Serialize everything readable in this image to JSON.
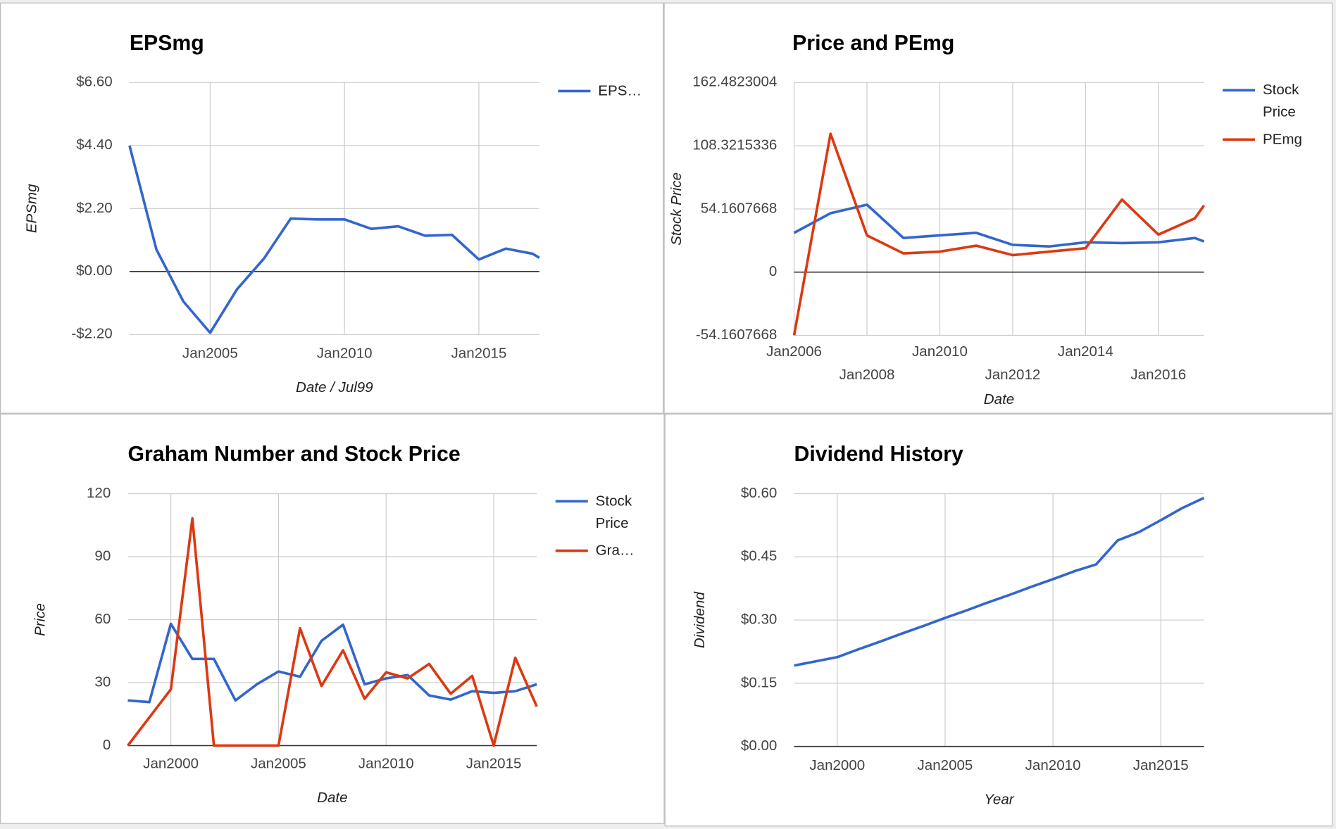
{
  "chart_data": [
    {
      "type": "line",
      "title": "EPSmg",
      "y_label": "EPSmg",
      "x_label": "Date / Jul99",
      "x": [
        "2002-01",
        "2003-01",
        "2004-01",
        "2005-01",
        "2006-01",
        "2007-01",
        "2008-01",
        "2009-01",
        "2010-01",
        "2011-01",
        "2012-01",
        "2013-01",
        "2014-01",
        "2015-01",
        "2016-01",
        "2017-01",
        "2017-04"
      ],
      "series": [
        {
          "name": "EPS…",
          "color": "#3366cc",
          "values": [
            4.4,
            0.77,
            -1.04,
            -2.14,
            -0.62,
            0.45,
            1.85,
            1.82,
            1.82,
            1.49,
            1.58,
            1.25,
            1.28,
            0.42,
            0.8,
            0.62,
            0.48
          ]
        }
      ],
      "xlim": [
        "2002-01",
        "2017-04"
      ],
      "xticks": [
        {
          "value": "2005-01",
          "label": "Jan2005"
        },
        {
          "value": "2010-01",
          "label": "Jan2010"
        },
        {
          "value": "2015-01",
          "label": "Jan2015"
        }
      ],
      "ylim": [
        -2.2,
        6.6
      ],
      "yticks": [
        {
          "value": -2.2,
          "label": "-$2.20"
        },
        {
          "value": 0,
          "label": "$0.00"
        },
        {
          "value": 2.2,
          "label": "$2.20"
        },
        {
          "value": 4.4,
          "label": "$4.40"
        },
        {
          "value": 6.6,
          "label": "$6.60"
        }
      ],
      "grid": true,
      "legend": "right"
    },
    {
      "type": "line",
      "title": "Price and PEmg",
      "y_label": "Stock Price",
      "x_label": "Date",
      "x": [
        "2006-01",
        "2007-01",
        "2008-01",
        "2009-01",
        "2010-01",
        "2011-01",
        "2012-01",
        "2013-01",
        "2014-01",
        "2015-01",
        "2016-01",
        "2017-01",
        "2017-04"
      ],
      "series": [
        {
          "name": "Stock Price",
          "color": "#3366cc",
          "values": [
            33.7,
            50.5,
            57.8,
            29.3,
            31.5,
            33.7,
            23.4,
            22,
            25.6,
            24.9,
            25.6,
            29.3,
            26.3
          ]
        },
        {
          "name": "PEmg",
          "color": "#dc3912",
          "values": [
            -54.1,
            118.6,
            31.5,
            16.1,
            17.6,
            22.7,
            14.6,
            17.6,
            20.5,
            62.2,
            32.2,
            46.1,
            57.1
          ]
        }
      ],
      "xlim": [
        "2006-01",
        "2017-04"
      ],
      "xticks": [
        {
          "value": "2006-01",
          "label": "Jan2006"
        },
        {
          "value": "2008-01",
          "label": "Jan2008"
        },
        {
          "value": "2010-01",
          "label": "Jan2010"
        },
        {
          "value": "2012-01",
          "label": "Jan2012"
        },
        {
          "value": "2014-01",
          "label": "Jan2014"
        },
        {
          "value": "2016-01",
          "label": "Jan2016"
        }
      ],
      "ylim": [
        -54.1607668,
        162.4823004
      ],
      "yticks": [
        -54.1607668,
        0,
        54.1607668,
        108.3215336,
        162.4823004
      ],
      "grid": true,
      "legend": "right"
    },
    {
      "type": "line",
      "title": "Graham Number and Stock Price",
      "y_label": "Price",
      "x_label": "Date",
      "x": [
        "1998-01",
        "1999-01",
        "2000-01",
        "2001-01",
        "2002-01",
        "2003-01",
        "2004-01",
        "2005-01",
        "2006-01",
        "2007-01",
        "2008-01",
        "2009-01",
        "2010-01",
        "2011-01",
        "2012-01",
        "2013-01",
        "2014-01",
        "2015-01",
        "2016-01",
        "2017-01"
      ],
      "series": [
        {
          "name": "Stock Price",
          "color": "#3366cc",
          "values": [
            21.5,
            20.7,
            58,
            41.3,
            41.3,
            21.5,
            29.2,
            35.3,
            32.8,
            49.9,
            57.6,
            29.2,
            32,
            33.6,
            23.9,
            21.9,
            25.9,
            25.1,
            25.9,
            29.2
          ]
        },
        {
          "name": "Gra…",
          "color": "#dc3912",
          "values": [
            0,
            13.4,
            26.8,
            108.2,
            0,
            0,
            0,
            0,
            55.9,
            28.4,
            45.4,
            22.3,
            34.9,
            32,
            38.9,
            24.7,
            33.2,
            0,
            41.8,
            18.6
          ]
        }
      ],
      "xlim": [
        "1998-01",
        "2017-01"
      ],
      "xticks": [
        {
          "value": "2000-01",
          "label": "Jan2000"
        },
        {
          "value": "2005-01",
          "label": "Jan2005"
        },
        {
          "value": "2010-01",
          "label": "Jan2010"
        },
        {
          "value": "2015-01",
          "label": "Jan2015"
        }
      ],
      "ylim": [
        0,
        120
      ],
      "yticks": [
        0,
        30,
        60,
        90,
        120
      ],
      "grid": true,
      "legend": "right"
    },
    {
      "type": "line",
      "title": "Dividend History",
      "y_label": "Dividend",
      "x_label": "Year",
      "x": [
        "1998-01",
        "1999-01",
        "2000-01",
        "2001-01",
        "2002-01",
        "2003-01",
        "2004-01",
        "2005-01",
        "2006-01",
        "2007-01",
        "2008-01",
        "2009-01",
        "2010-01",
        "2011-01",
        "2012-01",
        "2013-01",
        "2014-01",
        "2015-01",
        "2016-01",
        "2017-01"
      ],
      "series": [
        {
          "color": "#3366cc",
          "values": [
            0.192,
            0.202,
            0.212,
            0.231,
            0.249,
            0.268,
            0.286,
            0.305,
            0.323,
            0.342,
            0.36,
            0.379,
            0.397,
            0.416,
            0.432,
            0.489,
            0.509,
            0.537,
            0.566,
            0.59
          ]
        }
      ],
      "xlim": [
        "1998-01",
        "2017-01"
      ],
      "xticks": [
        {
          "value": "2000-01",
          "label": "Jan2000"
        },
        {
          "value": "2005-01",
          "label": "Jan2005"
        },
        {
          "value": "2010-01",
          "label": "Jan2010"
        },
        {
          "value": "2015-01",
          "label": "Jan2015"
        }
      ],
      "ylim": [
        0,
        0.6
      ],
      "yticks": [
        {
          "value": 0,
          "label": "$0.00"
        },
        {
          "value": 0.15,
          "label": "$0.15"
        },
        {
          "value": 0.3,
          "label": "$0.30"
        },
        {
          "value": 0.45,
          "label": "$0.45"
        },
        {
          "value": 0.6,
          "label": "$0.60"
        }
      ],
      "grid": true
    }
  ]
}
